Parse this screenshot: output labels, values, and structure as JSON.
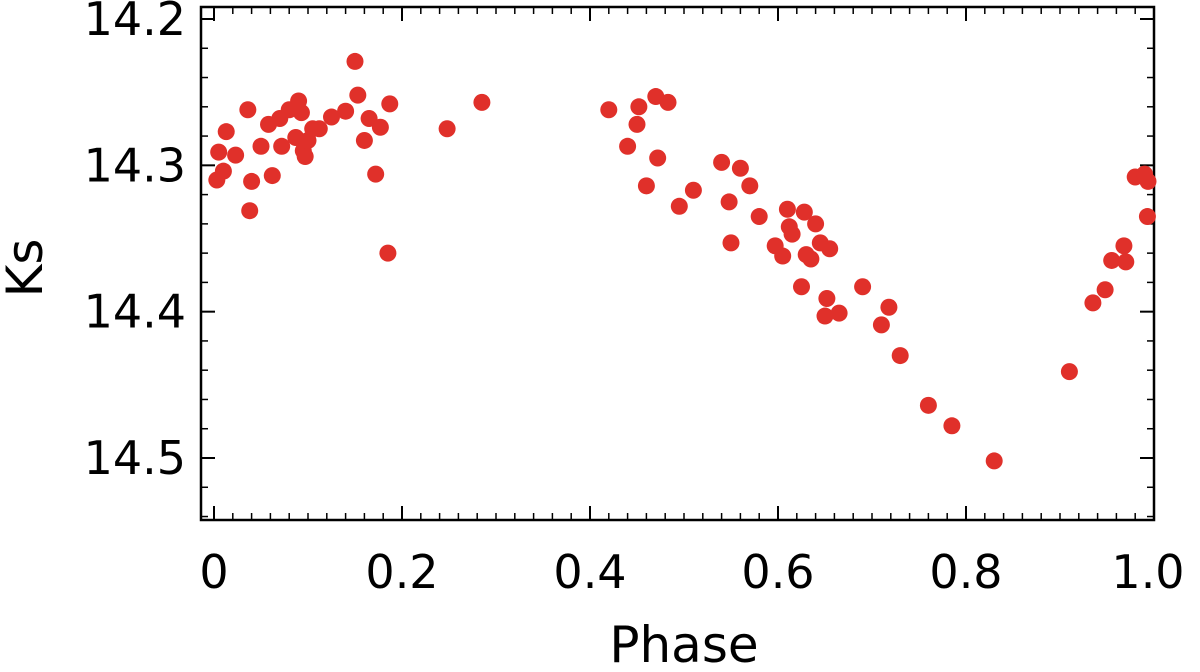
{
  "chart_data": {
    "type": "scatter",
    "xlabel": "Phase",
    "ylabel": "Ks",
    "xlim": [
      0.0,
      1.0
    ],
    "ylim": [
      14.2,
      14.55
    ],
    "y_inverted": true,
    "grid": false,
    "x_ticks": [
      "0",
      "0.2",
      "0.4",
      "0.6",
      "0.8",
      "1.0"
    ],
    "x_tick_values": [
      0,
      0.2,
      0.4,
      0.6,
      0.8,
      1.0
    ],
    "y_ticks": [
      "14.2",
      "14.3",
      "14.4",
      "14.5"
    ],
    "y_tick_values": [
      14.2,
      14.3,
      14.4,
      14.5
    ],
    "marker_color": "#e0302a",
    "series": [
      {
        "points": [
          [
            0.003,
            14.31
          ],
          [
            0.005,
            14.291
          ],
          [
            0.01,
            14.304
          ],
          [
            0.013,
            14.277
          ],
          [
            0.023,
            14.293
          ],
          [
            0.036,
            14.262
          ],
          [
            0.038,
            14.331
          ],
          [
            0.04,
            14.311
          ],
          [
            0.05,
            14.287
          ],
          [
            0.058,
            14.272
          ],
          [
            0.062,
            14.307
          ],
          [
            0.07,
            14.268
          ],
          [
            0.072,
            14.287
          ],
          [
            0.08,
            14.262
          ],
          [
            0.087,
            14.281
          ],
          [
            0.09,
            14.256
          ],
          [
            0.093,
            14.264
          ],
          [
            0.095,
            14.29
          ],
          [
            0.097,
            14.294
          ],
          [
            0.1,
            14.283
          ],
          [
            0.105,
            14.275
          ],
          [
            0.112,
            14.275
          ],
          [
            0.125,
            14.267
          ],
          [
            0.14,
            14.263
          ],
          [
            0.15,
            14.229
          ],
          [
            0.153,
            14.252
          ],
          [
            0.16,
            14.283
          ],
          [
            0.165,
            14.268
          ],
          [
            0.172,
            14.306
          ],
          [
            0.177,
            14.274
          ],
          [
            0.185,
            14.36
          ],
          [
            0.187,
            14.258
          ],
          [
            0.248,
            14.275
          ],
          [
            0.285,
            14.257
          ],
          [
            0.42,
            14.262
          ],
          [
            0.44,
            14.287
          ],
          [
            0.45,
            14.272
          ],
          [
            0.452,
            14.26
          ],
          [
            0.46,
            14.314
          ],
          [
            0.47,
            14.253
          ],
          [
            0.472,
            14.295
          ],
          [
            0.483,
            14.257
          ],
          [
            0.495,
            14.328
          ],
          [
            0.51,
            14.317
          ],
          [
            0.54,
            14.298
          ],
          [
            0.548,
            14.325
          ],
          [
            0.55,
            14.353
          ],
          [
            0.56,
            14.302
          ],
          [
            0.57,
            14.314
          ],
          [
            0.58,
            14.335
          ],
          [
            0.597,
            14.355
          ],
          [
            0.605,
            14.362
          ],
          [
            0.61,
            14.33
          ],
          [
            0.612,
            14.342
          ],
          [
            0.615,
            14.347
          ],
          [
            0.625,
            14.383
          ],
          [
            0.628,
            14.332
          ],
          [
            0.63,
            14.361
          ],
          [
            0.635,
            14.364
          ],
          [
            0.64,
            14.34
          ],
          [
            0.645,
            14.353
          ],
          [
            0.65,
            14.403
          ],
          [
            0.652,
            14.391
          ],
          [
            0.655,
            14.357
          ],
          [
            0.665,
            14.401
          ],
          [
            0.69,
            14.383
          ],
          [
            0.71,
            14.409
          ],
          [
            0.718,
            14.397
          ],
          [
            0.73,
            14.43
          ],
          [
            0.76,
            14.464
          ],
          [
            0.785,
            14.478
          ],
          [
            0.83,
            14.502
          ],
          [
            0.91,
            14.441
          ],
          [
            0.935,
            14.394
          ],
          [
            0.948,
            14.385
          ],
          [
            0.955,
            14.365
          ],
          [
            0.968,
            14.355
          ],
          [
            0.97,
            14.366
          ],
          [
            0.98,
            14.308
          ],
          [
            0.99,
            14.306
          ],
          [
            0.993,
            14.335
          ],
          [
            1.0,
            14.311
          ]
        ]
      }
    ]
  }
}
